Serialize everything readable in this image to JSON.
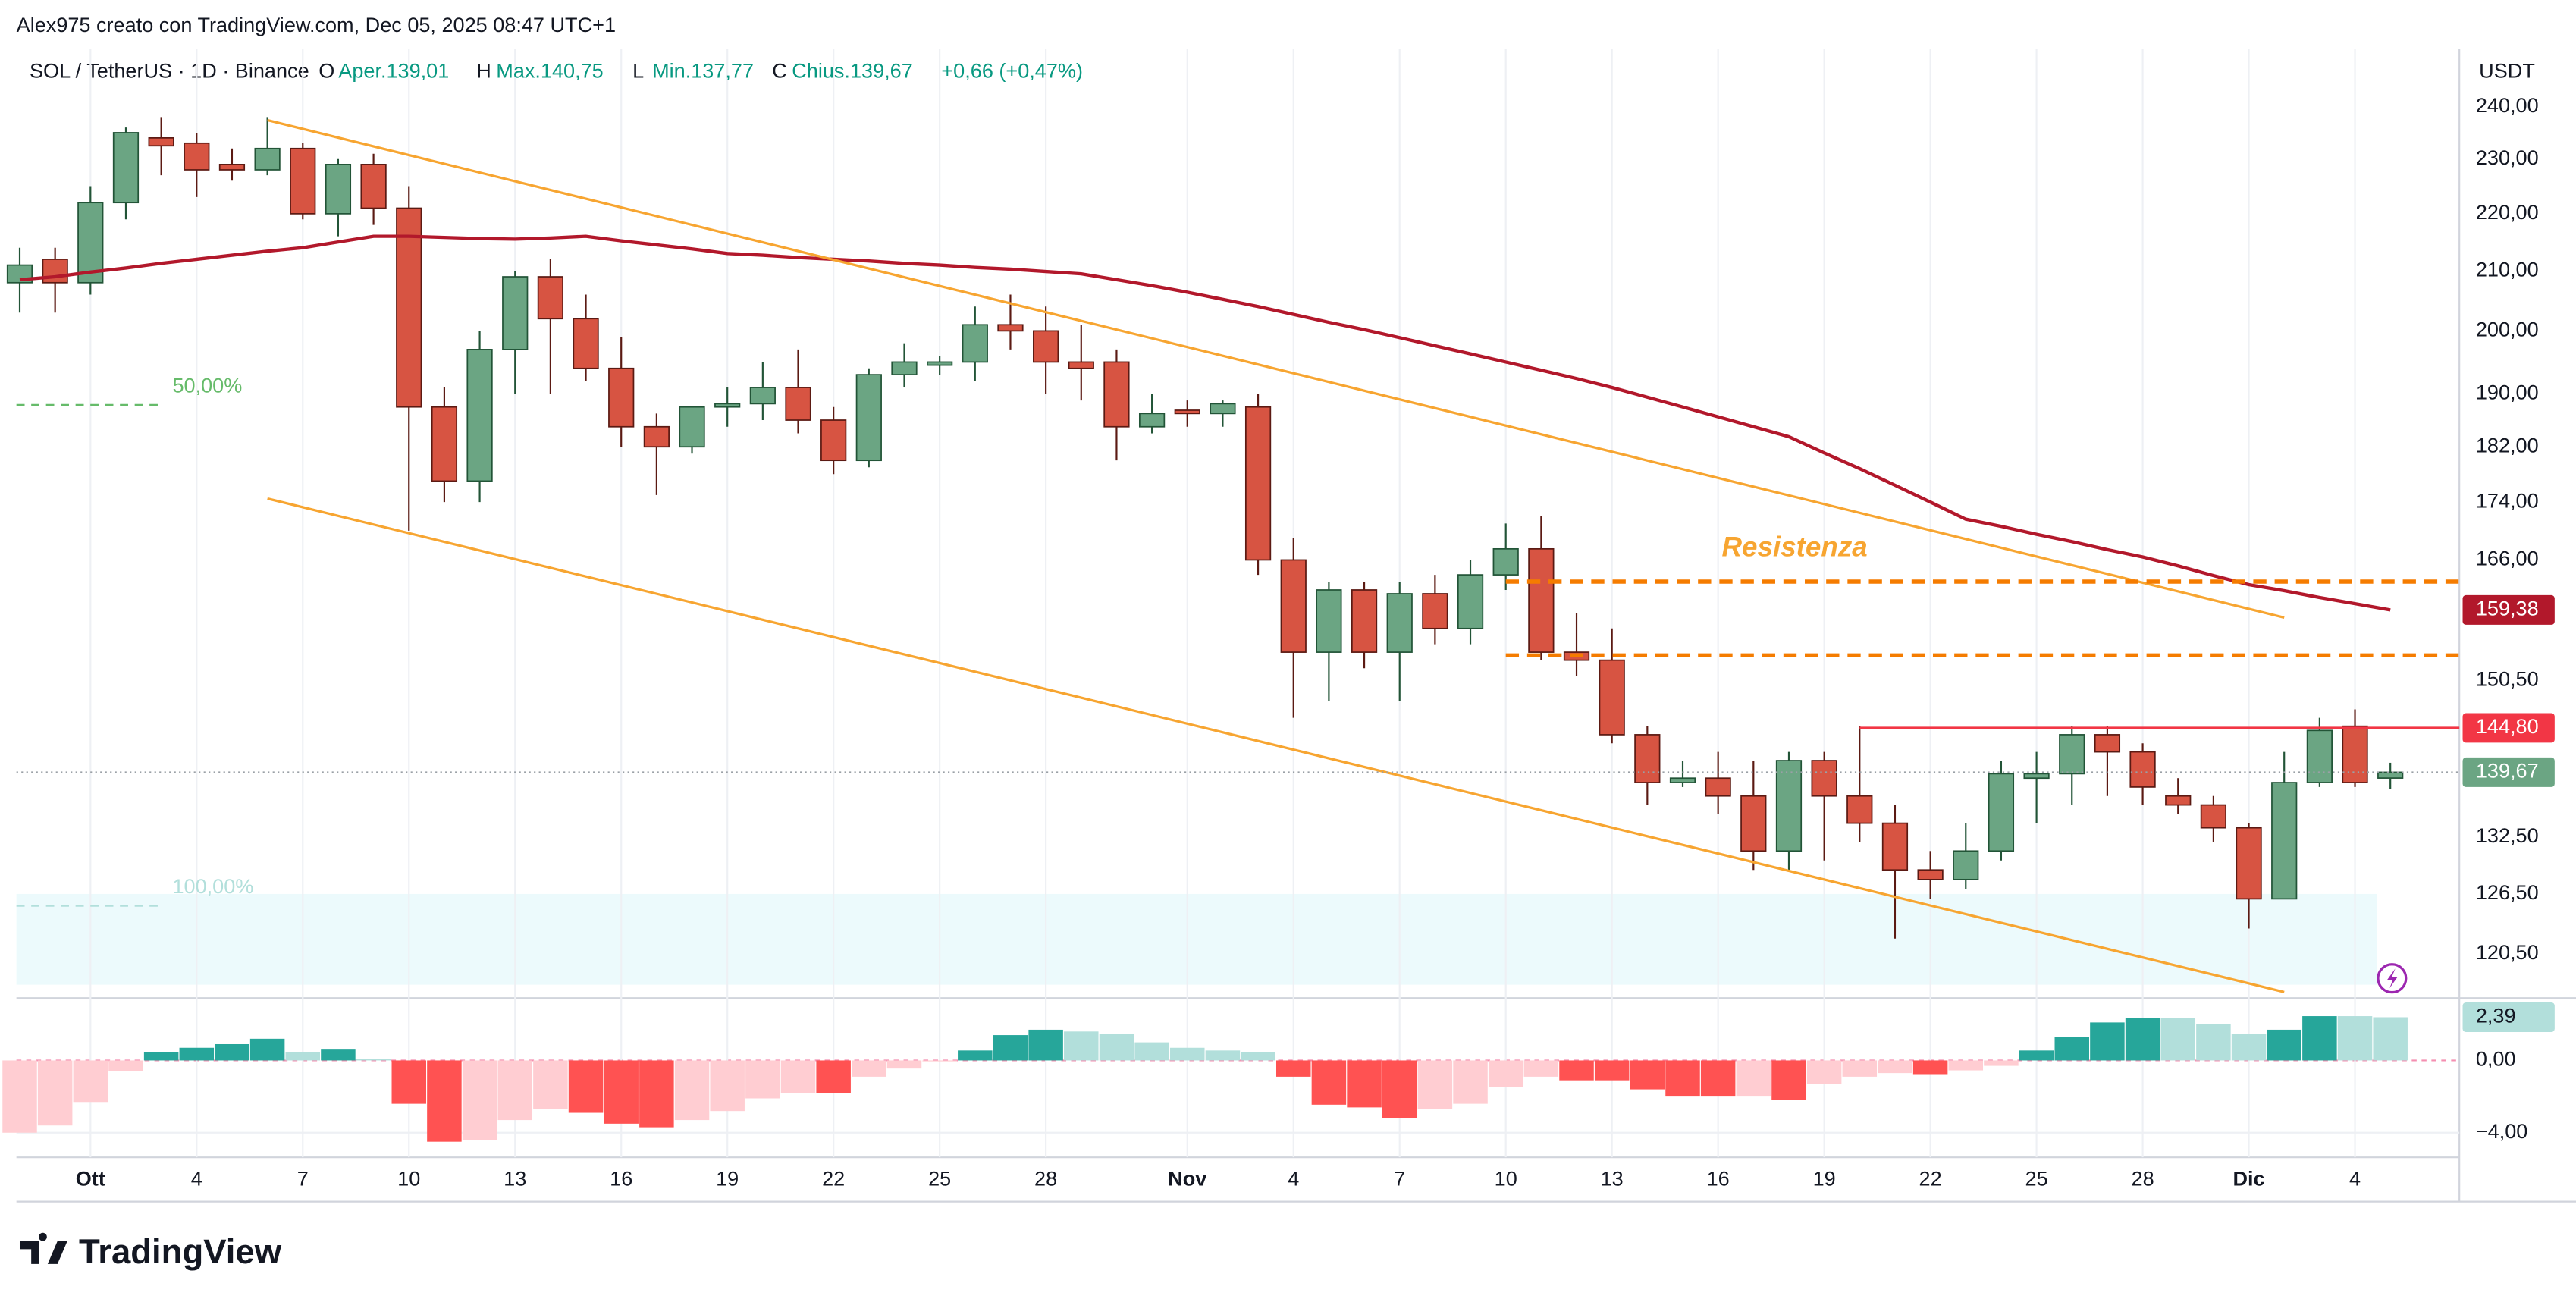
{
  "chart_data": {
    "type": "candlestick",
    "header": "Alex975 creato con TradingView.com, Dec 05, 2025 08:47 UTC+1",
    "symbol": "SOL / TetherUS · 1D · Binance",
    "ohlc_legend": [
      {
        "key": "O",
        "text": "Aper.139,01"
      },
      {
        "key": "H",
        "text": "Max.140,75"
      },
      {
        "key": "L",
        "text": "Min.137,77"
      },
      {
        "key": "C",
        "text": "Chius.139,67"
      }
    ],
    "change": "+0,66 (+0,47%)",
    "currency": "USDT",
    "logo": "TradingView",
    "categories": [
      null,
      null,
      "Ott",
      null,
      null,
      "4",
      null,
      null,
      "7",
      null,
      null,
      "10",
      null,
      null,
      "13",
      null,
      null,
      "16",
      null,
      null,
      "19",
      null,
      null,
      "22",
      null,
      null,
      "25",
      null,
      null,
      "28",
      null,
      null,
      null,
      "Nov",
      null,
      null,
      "4",
      null,
      null,
      "7",
      null,
      null,
      "10",
      null,
      null,
      "13",
      null,
      null,
      "16",
      null,
      null,
      "19",
      null,
      null,
      "22",
      null,
      null,
      "25",
      null,
      null,
      "28",
      null,
      null,
      "Dic",
      null,
      null,
      "4",
      null
    ],
    "open": [
      208,
      212,
      208,
      222,
      234,
      233,
      229,
      228,
      232,
      220,
      229,
      221,
      188,
      177,
      197,
      209,
      202,
      194,
      185,
      182,
      188,
      188.5,
      191,
      186,
      180,
      193,
      194.5,
      195,
      201,
      200,
      195,
      195,
      185,
      187.5,
      187,
      188,
      166,
      154,
      162,
      154,
      161.5,
      157,
      164,
      167.5,
      154,
      153,
      144,
      138.5,
      139,
      137,
      131,
      141,
      137,
      134,
      129,
      128,
      131,
      139,
      139.5,
      144,
      142,
      137,
      136,
      133.5,
      126,
      138.5,
      145,
      139.01
    ],
    "high": [
      214,
      214,
      225,
      236,
      238,
      235,
      232,
      238,
      233,
      230,
      231,
      225,
      191,
      200,
      210,
      212,
      206,
      199,
      187,
      188,
      191,
      195,
      197,
      188,
      194,
      198,
      196,
      204,
      206,
      204,
      201,
      197,
      190,
      189,
      189,
      190,
      169,
      163,
      163,
      163,
      164,
      166,
      171,
      172,
      159,
      157,
      145,
      141,
      142,
      141,
      142,
      142,
      145,
      136,
      131,
      134,
      141,
      142,
      145,
      145,
      143,
      139,
      137,
      134,
      142,
      146,
      147,
      140.75
    ],
    "low": [
      203,
      203,
      206,
      219,
      227,
      223,
      226,
      227,
      219,
      216,
      218,
      170,
      174,
      174,
      190,
      190,
      192,
      182,
      175,
      181,
      185,
      186,
      184,
      178,
      179,
      191,
      193,
      192,
      197,
      190,
      189,
      180,
      184,
      185,
      185,
      164,
      146,
      148,
      152,
      148,
      155,
      155,
      162,
      153,
      151,
      143,
      136,
      138,
      135,
      129,
      129,
      130,
      132,
      122,
      126,
      127,
      130,
      134,
      136,
      137,
      136,
      135,
      132,
      123,
      126,
      138,
      138,
      137.77
    ],
    "close": [
      211,
      208,
      222,
      235,
      232.5,
      228,
      228,
      232,
      220,
      229,
      221,
      188,
      177,
      197,
      209,
      202,
      194,
      185,
      182,
      188,
      188.5,
      191,
      186,
      180,
      193,
      195,
      195,
      201,
      200,
      195,
      194,
      185,
      187,
      187,
      188.5,
      166,
      154,
      162,
      154,
      161.5,
      157,
      164,
      167.5,
      154,
      153,
      144,
      138.5,
      139,
      137,
      131,
      141,
      137,
      134,
      129,
      128,
      131,
      139.5,
      139.5,
      144,
      142,
      138,
      136,
      133.5,
      126,
      138.5,
      144.5,
      138.5,
      139.67
    ],
    "close_label": "139,67",
    "up_color": "#6ba583",
    "up_edge": "#225437",
    "down_color": "#d75442",
    "down_edge": "#5b1a13",
    "log": true,
    "ylim": [
      116.7,
      251.5
    ],
    "yticks": [
      {
        "value": 240,
        "label": "240,00"
      },
      {
        "value": 230,
        "label": "230,00"
      },
      {
        "value": 220,
        "label": "220,00"
      },
      {
        "value": 210,
        "label": "210,00"
      },
      {
        "value": 200,
        "label": "200,00"
      },
      {
        "value": 190,
        "label": "190,00"
      },
      {
        "value": 182,
        "label": "182,00"
      },
      {
        "value": 174,
        "label": "174,00"
      },
      {
        "value": 166,
        "label": "166,00"
      },
      {
        "value": 150.5,
        "label": "150,50"
      },
      {
        "value": 132.5,
        "label": "132,50"
      },
      {
        "value": 126.5,
        "label": "126,50"
      },
      {
        "value": 120.5,
        "label": "120,50"
      }
    ],
    "grid": true,
    "moving_average": {
      "color": "#b2182b",
      "value_label": "159,38",
      "values": [
        208.5,
        209,
        209.8,
        210.5,
        211.3,
        212,
        212.7,
        213.4,
        214,
        215,
        216,
        216,
        215.8,
        215.6,
        215.5,
        215.7,
        216,
        215.2,
        214.5,
        213.8,
        213,
        212.7,
        212.3,
        212,
        211.7,
        211.3,
        211,
        210.6,
        210.3,
        209.9,
        209.5,
        208.5,
        207.5,
        206.4,
        205.2,
        204,
        202.7,
        201.4,
        200.2,
        198.9,
        197.6,
        196.3,
        195,
        193.7,
        192.4,
        191,
        189.5,
        188,
        186.5,
        185,
        183.5,
        181.1,
        178.8,
        176.4,
        174,
        171.6,
        170.6,
        169.5,
        168.5,
        167.4,
        166.4,
        165.2,
        163.9,
        162.7,
        161.9,
        161,
        160.2,
        159.38
      ]
    },
    "trendlines": [
      {
        "start": 7,
        "end": 64,
        "from": 237.4,
        "to": 158.4,
        "color": "#f7a531"
      },
      {
        "start": 7,
        "end": 64,
        "from": 174.5,
        "to": 116.8,
        "color": "#f7a531"
      }
    ],
    "levels": [
      {
        "value": 163.1,
        "start": 42,
        "color": "#f57c00",
        "dashed": true
      },
      {
        "value": 153.6,
        "start": 42,
        "color": "#f57c00",
        "dashed": true
      },
      {
        "value": 144.8,
        "start": 52,
        "color": "#f23645",
        "dashed": false,
        "label": "144,80"
      }
    ],
    "annotation": {
      "text": "Resistenza",
      "color": "#f7a531"
    },
    "fib": [
      {
        "label": "50,00%",
        "value": 188.3,
        "color": "#66bb6a"
      },
      {
        "label": "100,00%",
        "value": 125.3,
        "color": "#b2dfdb"
      }
    ],
    "zone": {
      "low": 117.5,
      "high": 126.5,
      "color": "#e0f7fa"
    },
    "oscillator": {
      "ylim": [
        -5.36,
        3.27
      ],
      "yticks": [
        {
          "value": 0,
          "label": "0,00"
        },
        {
          "value": -4,
          "label": "−4,00"
        }
      ],
      "value_label": "2,39",
      "values": [
        -4.0,
        -3.6,
        -2.3,
        -0.6,
        0.45,
        0.7,
        0.9,
        1.2,
        0.45,
        0.6,
        0.1,
        -2.4,
        -4.5,
        -4.4,
        -3.3,
        -2.7,
        -2.9,
        -3.5,
        -3.7,
        -3.3,
        -2.8,
        -2.1,
        -1.8,
        -1.8,
        -0.9,
        -0.45,
        -0.05,
        0.55,
        1.4,
        1.7,
        1.6,
        1.45,
        1.0,
        0.7,
        0.55,
        0.45,
        -0.9,
        -2.45,
        -2.6,
        -3.2,
        -2.7,
        -2.4,
        -1.45,
        -0.9,
        -1.1,
        -1.1,
        -1.6,
        -2.0,
        -2.0,
        -2.0,
        -2.2,
        -1.3,
        -0.9,
        -0.7,
        -0.8,
        -0.55,
        -0.3,
        0.55,
        1.3,
        2.1,
        2.35,
        2.35,
        2.0,
        1.45,
        1.7,
        2.45,
        2.45,
        2.39
      ],
      "colors": [
        "#ffcdd2",
        "#ffcdd2",
        "#ffcdd2",
        "#ffcdd2",
        "#26a69a",
        "#26a69a",
        "#26a69a",
        "#26a69a",
        "#b2dfdb",
        "#26a69a",
        "#b2dfdb",
        "#ff5252",
        "#ff5252",
        "#ffcdd2",
        "#ffcdd2",
        "#ffcdd2",
        "#ff5252",
        "#ff5252",
        "#ff5252",
        "#ffcdd2",
        "#ffcdd2",
        "#ffcdd2",
        "#ffcdd2",
        "#ff5252",
        "#ffcdd2",
        "#ffcdd2",
        "#ffcdd2",
        "#26a69a",
        "#26a69a",
        "#26a69a",
        "#b2dfdb",
        "#b2dfdb",
        "#b2dfdb",
        "#b2dfdb",
        "#b2dfdb",
        "#b2dfdb",
        "#ff5252",
        "#ff5252",
        "#ff5252",
        "#ff5252",
        "#ffcdd2",
        "#ffcdd2",
        "#ffcdd2",
        "#ffcdd2",
        "#ff5252",
        "#ff5252",
        "#ff5252",
        "#ff5252",
        "#ff5252",
        "#ffcdd2",
        "#ff5252",
        "#ffcdd2",
        "#ffcdd2",
        "#ffcdd2",
        "#ff5252",
        "#ffcdd2",
        "#ffcdd2",
        "#26a69a",
        "#26a69a",
        "#26a69a",
        "#26a69a",
        "#b2dfdb",
        "#b2dfdb",
        "#b2dfdb",
        "#26a69a",
        "#26a69a",
        "#b2dfdb",
        "#b2dfdb"
      ]
    }
  }
}
